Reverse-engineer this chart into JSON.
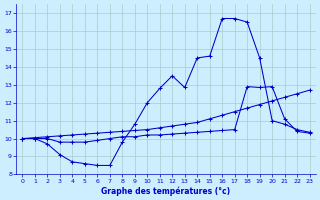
{
  "title": "Graphe des températures (°c)",
  "bg_color": "#cceeff",
  "grid_color": "#aacccc",
  "line_color": "#0000cc",
  "xlim": [
    -0.5,
    23.5
  ],
  "ylim": [
    8,
    17.5
  ],
  "xticks": [
    0,
    1,
    2,
    3,
    4,
    5,
    6,
    7,
    8,
    9,
    10,
    11,
    12,
    13,
    14,
    15,
    16,
    17,
    18,
    19,
    20,
    21,
    22,
    23
  ],
  "yticks": [
    8,
    9,
    10,
    11,
    12,
    13,
    14,
    15,
    16,
    17
  ],
  "line1_x": [
    0,
    1,
    2,
    3,
    4,
    5,
    6,
    7,
    8,
    9,
    10,
    11,
    12,
    13,
    14,
    15,
    16,
    17,
    18,
    19,
    20,
    21,
    22,
    23
  ],
  "line1_y": [
    10.0,
    10.0,
    9.7,
    9.1,
    8.7,
    8.6,
    8.5,
    8.5,
    9.8,
    10.8,
    12.0,
    12.8,
    13.5,
    12.85,
    14.5,
    14.6,
    16.7,
    16.7,
    16.5,
    14.5,
    11.0,
    10.8,
    10.5,
    10.35
  ],
  "line2_x": [
    0,
    1,
    2,
    3,
    4,
    5,
    6,
    7,
    8,
    9,
    10,
    11,
    12,
    13,
    14,
    15,
    16,
    17,
    18,
    19,
    20,
    21,
    22,
    23
  ],
  "line2_y": [
    10.0,
    10.05,
    10.1,
    10.15,
    10.2,
    10.25,
    10.3,
    10.35,
    10.4,
    10.45,
    10.5,
    10.6,
    10.7,
    10.8,
    10.9,
    11.1,
    11.3,
    11.5,
    11.7,
    11.9,
    12.1,
    12.3,
    12.5,
    12.7
  ],
  "line3_x": [
    0,
    1,
    2,
    3,
    4,
    5,
    6,
    7,
    8,
    9,
    10,
    11,
    12,
    13,
    14,
    15,
    16,
    17,
    18,
    19,
    20,
    21,
    22,
    23
  ],
  "line3_y": [
    10.0,
    10.0,
    10.0,
    9.8,
    9.8,
    9.8,
    9.9,
    10.0,
    10.1,
    10.1,
    10.2,
    10.2,
    10.25,
    10.3,
    10.35,
    10.4,
    10.45,
    10.5,
    12.9,
    12.85,
    12.9,
    11.1,
    10.4,
    10.3
  ]
}
